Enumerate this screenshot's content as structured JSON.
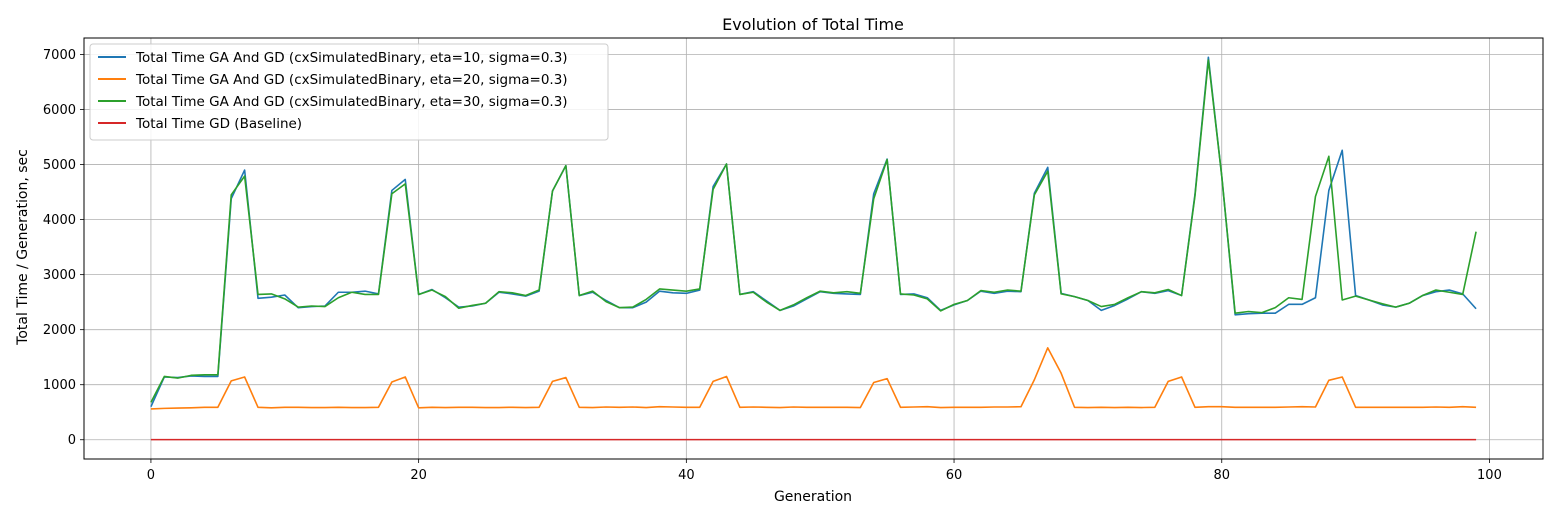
{
  "chart_data": {
    "type": "line",
    "title": "Evolution of Total Time",
    "xlabel": "Generation",
    "ylabel": "Total Time / Generation, sec",
    "xlim": [
      -5,
      104
    ],
    "ylim": [
      -350,
      7300
    ],
    "xticks": [
      0,
      20,
      40,
      60,
      80,
      100
    ],
    "yticks": [
      0,
      1000,
      2000,
      3000,
      4000,
      5000,
      6000,
      7000
    ],
    "grid": true,
    "legend_position": "top-left",
    "x": [
      0,
      1,
      2,
      3,
      4,
      5,
      6,
      7,
      8,
      9,
      10,
      11,
      12,
      13,
      14,
      15,
      16,
      17,
      18,
      19,
      20,
      21,
      22,
      23,
      24,
      25,
      26,
      27,
      28,
      29,
      30,
      31,
      32,
      33,
      34,
      35,
      36,
      37,
      38,
      39,
      40,
      41,
      42,
      43,
      44,
      45,
      46,
      47,
      48,
      49,
      50,
      51,
      52,
      53,
      54,
      55,
      56,
      57,
      58,
      59,
      60,
      61,
      62,
      63,
      64,
      65,
      66,
      67,
      68,
      69,
      70,
      71,
      72,
      73,
      74,
      75,
      76,
      77,
      78,
      79,
      80,
      81,
      82,
      83,
      84,
      85,
      86,
      87,
      88,
      89,
      90,
      91,
      92,
      93,
      94,
      95,
      96,
      97,
      98,
      99
    ],
    "series": [
      {
        "name": "Total Time GA And GD (cxSimulatedBinary, eta=10, sigma=0.3)",
        "color": "#1f77b4",
        "values": [
          600,
          1140,
          1130,
          1160,
          1150,
          1150,
          4380,
          4900,
          2570,
          2590,
          2630,
          2400,
          2420,
          2430,
          2680,
          2680,
          2700,
          2650,
          4530,
          4730,
          2640,
          2730,
          2580,
          2410,
          2430,
          2480,
          2680,
          2650,
          2610,
          2700,
          4520,
          4980,
          2620,
          2680,
          2530,
          2400,
          2400,
          2500,
          2700,
          2670,
          2660,
          2720,
          4600,
          5010,
          2640,
          2690,
          2520,
          2350,
          2430,
          2560,
          2690,
          2660,
          2650,
          2640,
          4470,
          5100,
          2640,
          2650,
          2580,
          2350,
          2450,
          2530,
          2700,
          2660,
          2700,
          2690,
          4480,
          4950,
          2660,
          2600,
          2530,
          2350,
          2440,
          2560,
          2690,
          2660,
          2710,
          2620,
          4460,
          6950,
          4790,
          2270,
          2290,
          2300,
          2300,
          2460,
          2460,
          2580,
          4530,
          5260,
          2620,
          2540,
          2450,
          2410,
          2480,
          2620,
          2690,
          2720,
          2650,
          2380
        ]
      },
      {
        "name": "Total Time GA And GD (cxSimulatedBinary, eta=20, sigma=0.3)",
        "color": "#ff7f0e",
        "values": [
          560,
          570,
          575,
          580,
          590,
          590,
          1070,
          1140,
          590,
          580,
          590,
          590,
          585,
          585,
          590,
          585,
          585,
          590,
          1050,
          1140,
          580,
          590,
          585,
          590,
          590,
          585,
          585,
          590,
          585,
          590,
          1060,
          1130,
          590,
          585,
          595,
          590,
          595,
          585,
          600,
          595,
          590,
          590,
          1060,
          1150,
          590,
          595,
          590,
          585,
          595,
          590,
          590,
          590,
          590,
          585,
          1040,
          1110,
          590,
          595,
          600,
          585,
          590,
          590,
          590,
          595,
          595,
          600,
          1090,
          1670,
          1210,
          590,
          585,
          590,
          585,
          590,
          585,
          590,
          1060,
          1140,
          590,
          600,
          600,
          590,
          590,
          590,
          590,
          595,
          600,
          595,
          1080,
          1140,
          590,
          590,
          590,
          590,
          590,
          590,
          595,
          590,
          600,
          590
        ]
      },
      {
        "name": "Total Time GA And GD (cxSimulatedBinary, eta=30, sigma=0.3)",
        "color": "#2ca02c",
        "values": [
          680,
          1150,
          1120,
          1170,
          1180,
          1180,
          4450,
          4790,
          2640,
          2650,
          2560,
          2410,
          2430,
          2420,
          2580,
          2680,
          2640,
          2640,
          4470,
          4650,
          2640,
          2720,
          2600,
          2390,
          2440,
          2480,
          2690,
          2670,
          2620,
          2720,
          4520,
          4980,
          2620,
          2700,
          2510,
          2400,
          2410,
          2550,
          2740,
          2720,
          2700,
          2740,
          4550,
          5010,
          2640,
          2680,
          2500,
          2350,
          2450,
          2580,
          2700,
          2670,
          2690,
          2660,
          4380,
          5090,
          2650,
          2630,
          2560,
          2340,
          2460,
          2530,
          2710,
          2680,
          2720,
          2700,
          4450,
          4880,
          2650,
          2600,
          2530,
          2420,
          2460,
          2580,
          2690,
          2670,
          2730,
          2620,
          4430,
          6900,
          4790,
          2300,
          2330,
          2310,
          2400,
          2580,
          2550,
          4420,
          5150,
          2540,
          2610,
          2540,
          2470,
          2410,
          2480,
          2620,
          2720,
          2680,
          2640,
          3780
        ]
      },
      {
        "name": "Total Time GD (Baseline)",
        "color": "#d62728",
        "values": [
          2,
          2,
          2,
          2,
          2,
          2,
          2,
          2,
          2,
          2,
          2,
          2,
          2,
          2,
          2,
          2,
          2,
          2,
          2,
          2,
          2,
          2,
          2,
          2,
          2,
          2,
          2,
          2,
          2,
          2,
          2,
          2,
          2,
          2,
          2,
          2,
          2,
          2,
          2,
          2,
          2,
          2,
          2,
          2,
          2,
          2,
          2,
          2,
          2,
          2,
          2,
          2,
          2,
          2,
          2,
          2,
          2,
          2,
          2,
          2,
          2,
          2,
          2,
          2,
          2,
          2,
          2,
          2,
          2,
          2,
          2,
          2,
          2,
          2,
          2,
          2,
          2,
          2,
          2,
          2,
          2,
          2,
          2,
          2,
          2,
          2,
          2,
          2,
          2,
          2,
          2,
          2,
          2,
          2,
          2,
          2,
          2,
          2,
          2,
          2
        ]
      }
    ]
  }
}
